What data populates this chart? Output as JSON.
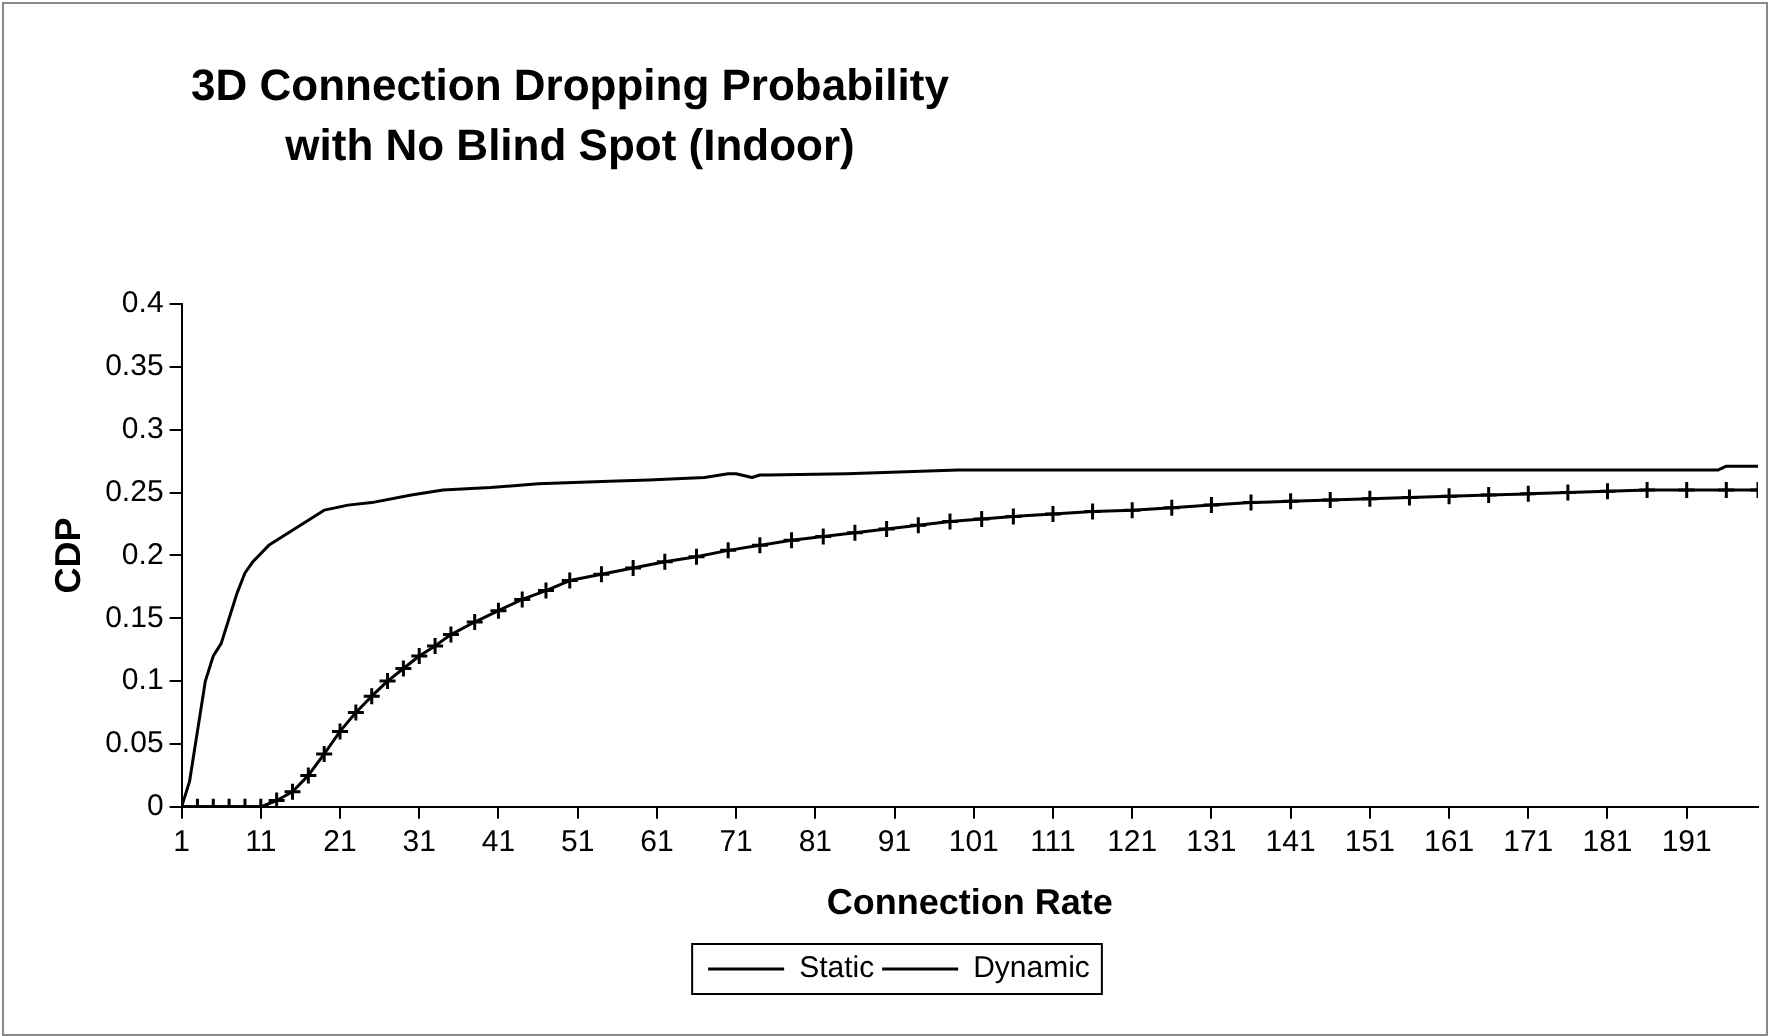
{
  "chart_data": {
    "type": "line",
    "title": "3D Connection Dropping Probability with No Blind Spot (Indoor)",
    "xlabel": "Connection Rate",
    "ylabel": "CDP",
    "xlim": [
      1,
      200
    ],
    "xticks": [
      1,
      11,
      21,
      31,
      41,
      51,
      61,
      71,
      81,
      91,
      101,
      111,
      121,
      131,
      141,
      151,
      161,
      171,
      181,
      191
    ],
    "ylim": [
      0,
      0.4
    ],
    "yticks": [
      0,
      0.05,
      0.1,
      0.15,
      0.2,
      0.25,
      0.3,
      0.35,
      0.4
    ],
    "grid": false,
    "legend": "bottom",
    "line_style": "solid",
    "series": [
      {
        "name": "Static",
        "color": "#000000",
        "marker": "none",
        "x": [
          1,
          2,
          3,
          4,
          5,
          6,
          7,
          8,
          9,
          10,
          12,
          15,
          17,
          19,
          22,
          25,
          30,
          34,
          40,
          46,
          55,
          60,
          67,
          70,
          71,
          73,
          74,
          75,
          85,
          99,
          120,
          150,
          180,
          195,
          196,
          200
        ],
        "values": [
          0,
          0.02,
          0.06,
          0.1,
          0.12,
          0.13,
          0.15,
          0.17,
          0.186,
          0.195,
          0.208,
          0.22,
          0.228,
          0.236,
          0.24,
          0.242,
          0.248,
          0.252,
          0.254,
          0.257,
          0.259,
          0.26,
          0.262,
          0.265,
          0.265,
          0.262,
          0.264,
          0.264,
          0.265,
          0.268,
          0.268,
          0.268,
          0.268,
          0.268,
          0.271,
          0.271
        ]
      },
      {
        "name": "Dynamic",
        "color": "#000000",
        "marker": "cross",
        "x": [
          1,
          3,
          5,
          7,
          9,
          11,
          13,
          15,
          17,
          19,
          21,
          23,
          25,
          27,
          29,
          31,
          33,
          35,
          38,
          41,
          44,
          47,
          50,
          54,
          58,
          62,
          66,
          70,
          74,
          78,
          82,
          86,
          90,
          94,
          98,
          102,
          106,
          111,
          116,
          121,
          126,
          131,
          136,
          141,
          146,
          151,
          156,
          161,
          166,
          171,
          176,
          181,
          186,
          191,
          196,
          200
        ],
        "values": [
          0,
          0,
          0,
          0,
          0,
          0,
          0.005,
          0.012,
          0.025,
          0.042,
          0.06,
          0.075,
          0.088,
          0.1,
          0.11,
          0.12,
          0.128,
          0.137,
          0.147,
          0.156,
          0.165,
          0.172,
          0.18,
          0.185,
          0.19,
          0.195,
          0.199,
          0.204,
          0.208,
          0.212,
          0.215,
          0.218,
          0.221,
          0.224,
          0.227,
          0.229,
          0.231,
          0.233,
          0.235,
          0.236,
          0.238,
          0.24,
          0.242,
          0.243,
          0.244,
          0.245,
          0.246,
          0.247,
          0.248,
          0.249,
          0.25,
          0.251,
          0.252,
          0.252,
          0.252,
          0.252
        ]
      }
    ]
  }
}
